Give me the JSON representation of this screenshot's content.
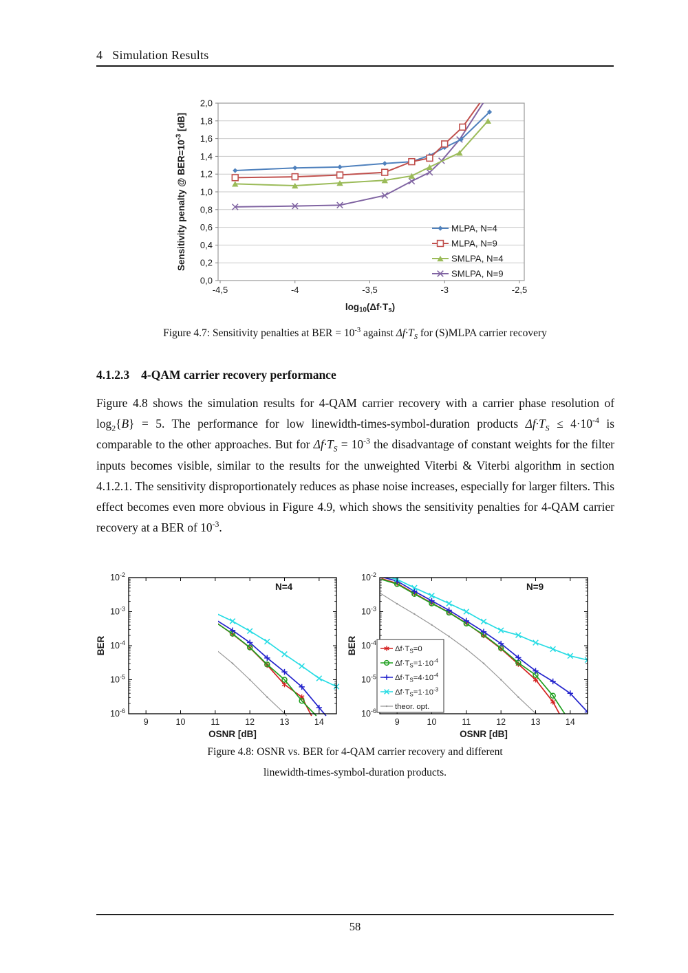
{
  "page": {
    "header": "4   Simulation Results",
    "number": "58"
  },
  "section": {
    "heading_number": "4.1.2.3",
    "heading_title": "4-QAM carrier recovery performance",
    "body_html": "Figure 4.8 shows the simulation results for 4-QAM carrier recovery with a carrier phase resolution of log<sub>2</sub>{<i>B</i>} = 5. The performance for low linewidth-times-symbol-duration products <i>&#916;f&#183;T<sub>S</sub></i> &#8804; 4&#183;10<sup>-4</sup> is comparable to the other approaches. But for <i>&#916;f&#183;T<sub>S</sub></i> = 10<sup>-3</sup> the disadvantage of constant weights for the filter inputs becomes visible, similar to the results for the unweighted Viterbi &amp; Viterbi algorithm in section 4.1.2.1. The sensitivity disproportionately reduces as phase noise increases, especially for larger filters. This effect becomes even more obvious in Figure 4.9, which shows the sensitivity penalties for 4-QAM carrier recovery at a BER of 10<sup>-3</sup>."
  },
  "figure47": {
    "caption_html": "Figure 4.7: Sensitivity penalties at BER = 10<sup>-3</sup> against <i>&#916;f&#183;T<sub>S</sub></i> for (S)MLPA carrier recovery"
  },
  "figure48": {
    "caption_line1": "Figure 4.8: OSNR vs. BER for 4-QAM carrier recovery and different",
    "caption_line2": "linewidth-times-symbol-duration products."
  },
  "chart_data": [
    {
      "id": "fig47",
      "type": "line",
      "xlabel": "log10(Δf·Ts)",
      "xlabel_rich": [
        [
          "t",
          "log"
        ],
        [
          "sub",
          "10"
        ],
        [
          "t",
          "(Δf·T"
        ],
        [
          "sub",
          "s"
        ],
        [
          "t",
          ")"
        ]
      ],
      "ylabel": "Sensitivity penalty @ BER=10-3 [dB]",
      "ylabel_rich": [
        [
          "t",
          "Sensitivity penalty @ BER=10"
        ],
        [
          "sup",
          "-3"
        ],
        [
          "t",
          " [dB]"
        ]
      ],
      "xlim": [
        -4.5,
        -2.5
      ],
      "ylim": [
        0,
        2
      ],
      "xtick_values": [
        -4.5,
        -4,
        -3.5,
        -3,
        -2.5
      ],
      "xtick_labels": [
        "-4,5",
        "-4",
        "-3,5",
        "-3",
        "-2,5"
      ],
      "ytick_labels": [
        "0,0",
        "0,2",
        "0,4",
        "0,6",
        "0,8",
        "1,0",
        "1,2",
        "1,4",
        "1,6",
        "1,8",
        "2,0"
      ],
      "grid": "horizontal",
      "legend_position": "inside lower right",
      "series": [
        {
          "name": "MLPA, N=4",
          "color": "#4F81BD",
          "marker": "diamond",
          "msize": 3.6,
          "points": [
            [
              -4.4,
              1.24
            ],
            [
              -4.0,
              1.27
            ],
            [
              -3.7,
              1.28
            ],
            [
              -3.4,
              1.32
            ],
            [
              -3.22,
              1.34
            ],
            [
              -3.1,
              1.41
            ],
            [
              -3.0,
              1.5
            ],
            [
              -2.89,
              1.59
            ],
            [
              -2.7,
              1.9
            ]
          ]
        },
        {
          "name": "MLPA, N=9",
          "color": "#C0504D",
          "marker": "square-open",
          "msize": 4.4,
          "points": [
            [
              -4.4,
              1.16
            ],
            [
              -4.0,
              1.17
            ],
            [
              -3.7,
              1.19
            ],
            [
              -3.4,
              1.22
            ],
            [
              -3.22,
              1.34
            ],
            [
              -3.1,
              1.38
            ],
            [
              -3.0,
              1.54
            ],
            [
              -2.88,
              1.73
            ],
            [
              -2.74,
              2.06
            ]
          ]
        },
        {
          "name": "SMLPA, N=4",
          "color": "#9BBB59",
          "marker": "triangle",
          "msize": 4.1,
          "points": [
            [
              -4.4,
              1.09
            ],
            [
              -4.0,
              1.07
            ],
            [
              -3.7,
              1.1
            ],
            [
              -3.4,
              1.13
            ],
            [
              -3.22,
              1.18
            ],
            [
              -3.1,
              1.28
            ],
            [
              -2.9,
              1.44
            ],
            [
              -2.71,
              1.8
            ]
          ]
        },
        {
          "name": "SMLPA, N=9",
          "color": "#8064A2",
          "marker": "x",
          "msize": 4.3,
          "points": [
            [
              -4.4,
              0.83
            ],
            [
              -4.0,
              0.84
            ],
            [
              -3.7,
              0.85
            ],
            [
              -3.4,
              0.96
            ],
            [
              -3.22,
              1.12
            ],
            [
              -3.1,
              1.22
            ],
            [
              -3.02,
              1.35
            ],
            [
              -2.9,
              1.59
            ],
            [
              -2.72,
              2.06
            ]
          ]
        }
      ]
    },
    {
      "id": "fig48-left",
      "type": "line",
      "label": "N=4",
      "xlabel": "OSNR [dB]",
      "ylabel": "BER",
      "xlim": [
        8.5,
        14.5
      ],
      "xticks": [
        9,
        10,
        11,
        12,
        13,
        14
      ],
      "ytick_exponents": [
        -2,
        -3,
        -4,
        -5,
        -6
      ],
      "yscale": "log",
      "legend_box": false,
      "series": [
        {
          "name": "theor. opt.",
          "name_rich": [
            [
              "t",
              "theor. opt."
            ]
          ],
          "color": "#979797",
          "marker": "dot",
          "msize": 1.2,
          "width": 1.2,
          "points": [
            [
              8.5,
              -2.45
            ],
            [
              9,
              -2.77
            ],
            [
              9.5,
              -3.07
            ],
            [
              10,
              -3.39
            ],
            [
              10.5,
              -3.73
            ],
            [
              11,
              -4.1
            ],
            [
              11.5,
              -4.52
            ],
            [
              12,
              -5.0
            ],
            [
              12.5,
              -5.51
            ],
            [
              13,
              -5.99
            ],
            [
              13.06,
              -6.06
            ]
          ]
        },
        {
          "name": "Δf·TS=0",
          "name_rich": [
            [
              "t",
              "Δf·T"
            ],
            [
              "sub",
              "S"
            ],
            [
              "t",
              "=0"
            ]
          ],
          "color": "#D42020",
          "marker": "asterisk",
          "msize": 3.6,
          "points": [
            [
              8.55,
              -2.02
            ],
            [
              9,
              -2.16
            ],
            [
              9.5,
              -2.44
            ],
            [
              10,
              -2.72
            ],
            [
              10.5,
              -2.99
            ],
            [
              11,
              -3.3
            ],
            [
              11.5,
              -3.66
            ],
            [
              12,
              -4.06
            ],
            [
              12.5,
              -4.57
            ],
            [
              13,
              -5.14
            ],
            [
              13.5,
              -5.51
            ],
            [
              13.78,
              -6.06
            ]
          ]
        },
        {
          "name": "Δf·TS=1·10-4",
          "name_rich": [
            [
              "t",
              "Δf·T"
            ],
            [
              "sub",
              "S"
            ],
            [
              "t",
              "=1·10"
            ],
            [
              "sup",
              "-4"
            ]
          ],
          "color": "#1FA01F",
          "marker": "circle-open",
          "msize": 3.5,
          "points": [
            [
              8.55,
              -2.04
            ],
            [
              9,
              -2.18
            ],
            [
              9.5,
              -2.46
            ],
            [
              10,
              -2.73
            ],
            [
              10.5,
              -3.0
            ],
            [
              11,
              -3.31
            ],
            [
              11.5,
              -3.65
            ],
            [
              12,
              -4.05
            ],
            [
              12.5,
              -4.55
            ],
            [
              13,
              -5.0
            ],
            [
              13.5,
              -5.62
            ],
            [
              13.92,
              -6.06
            ]
          ]
        },
        {
          "name": "Δf·TS=4·10-4",
          "name_rich": [
            [
              "t",
              "Δf·T"
            ],
            [
              "sub",
              "S"
            ],
            [
              "t",
              "=4·10"
            ],
            [
              "sup",
              "-4"
            ]
          ],
          "color": "#2222CC",
          "marker": "plus",
          "msize": 3.8,
          "points": [
            [
              8.55,
              -1.98
            ],
            [
              9,
              -2.1
            ],
            [
              9.5,
              -2.37
            ],
            [
              10,
              -2.64
            ],
            [
              10.5,
              -2.91
            ],
            [
              11,
              -3.23
            ],
            [
              11.5,
              -3.55
            ],
            [
              12,
              -3.91
            ],
            [
              12.5,
              -4.36
            ],
            [
              13,
              -4.77
            ],
            [
              13.5,
              -5.21
            ],
            [
              14,
              -5.82
            ],
            [
              14.2,
              -6.06
            ]
          ]
        },
        {
          "name": "Δf·TS=1·10-3",
          "name_rich": [
            [
              "t",
              "Δf·T"
            ],
            [
              "sub",
              "S"
            ],
            [
              "t",
              "=1·10"
            ],
            [
              "sup",
              "-3"
            ]
          ],
          "color": "#27DCE4",
          "marker": "x",
          "msize": 3.8,
          "points": [
            [
              8.7,
              -1.98
            ],
            [
              9,
              -2.03
            ],
            [
              9.5,
              -2.3
            ],
            [
              10,
              -2.56
            ],
            [
              10.5,
              -2.79
            ],
            [
              11,
              -3.04
            ],
            [
              11.5,
              -3.28
            ],
            [
              12,
              -3.57
            ],
            [
              12.5,
              -3.88
            ],
            [
              13,
              -4.25
            ],
            [
              13.5,
              -4.6
            ],
            [
              14,
              -4.96
            ],
            [
              14.5,
              -5.2
            ]
          ]
        }
      ]
    },
    {
      "id": "fig48-right",
      "type": "line",
      "label": "N=9",
      "xlabel": "OSNR [dB]",
      "ylabel": "BER",
      "xlim": [
        8.5,
        14.5
      ],
      "xticks": [
        9,
        10,
        11,
        12,
        13,
        14
      ],
      "ytick_exponents": [
        -2,
        -3,
        -4,
        -5,
        -6
      ],
      "yscale": "log",
      "legend_box": true,
      "legend_order": [
        "Δf·TS=0",
        "Δf·TS=1·10-4",
        "Δf·TS=4·10-4",
        "Δf·TS=1·10-3",
        "theor. opt."
      ],
      "series": [
        {
          "name": "theor. opt.",
          "name_rich": [
            [
              "t",
              "theor. opt."
            ]
          ],
          "color": "#979797",
          "marker": "dot",
          "msize": 1.2,
          "width": 1.2,
          "points": [
            [
              8.5,
              -2.45
            ],
            [
              9,
              -2.77
            ],
            [
              9.5,
              -3.07
            ],
            [
              10,
              -3.39
            ],
            [
              10.5,
              -3.73
            ],
            [
              11,
              -4.1
            ],
            [
              11.5,
              -4.52
            ],
            [
              12,
              -5.0
            ],
            [
              12.5,
              -5.51
            ],
            [
              13,
              -5.99
            ],
            [
              13.06,
              -6.06
            ]
          ]
        },
        {
          "name": "Δf·TS=0",
          "name_rich": [
            [
              "t",
              "Δf·T"
            ],
            [
              "sub",
              "S"
            ],
            [
              "t",
              "=0"
            ]
          ],
          "color": "#D42020",
          "marker": "asterisk",
          "msize": 3.6,
          "points": [
            [
              8.55,
              -2.03
            ],
            [
              9,
              -2.17
            ],
            [
              9.5,
              -2.46
            ],
            [
              10,
              -2.75
            ],
            [
              10.5,
              -3.02
            ],
            [
              11,
              -3.34
            ],
            [
              11.5,
              -3.7
            ],
            [
              12,
              -4.09
            ],
            [
              12.5,
              -4.54
            ],
            [
              13,
              -5.0
            ],
            [
              13.5,
              -5.65
            ],
            [
              13.72,
              -6.06
            ]
          ]
        },
        {
          "name": "Δf·TS=1·10-4",
          "name_rich": [
            [
              "t",
              "Δf·T"
            ],
            [
              "sub",
              "S"
            ],
            [
              "t",
              "=1·10"
            ],
            [
              "sup",
              "-4"
            ]
          ],
          "color": "#1FA01F",
          "marker": "circle-open",
          "msize": 3.5,
          "points": [
            [
              8.55,
              -2.05
            ],
            [
              9,
              -2.19
            ],
            [
              9.5,
              -2.48
            ],
            [
              10,
              -2.76
            ],
            [
              10.5,
              -3.03
            ],
            [
              11,
              -3.35
            ],
            [
              11.5,
              -3.68
            ],
            [
              12,
              -4.07
            ],
            [
              12.5,
              -4.5
            ],
            [
              13,
              -4.86
            ],
            [
              13.5,
              -5.47
            ],
            [
              13.88,
              -6.06
            ]
          ]
        },
        {
          "name": "Δf·TS=4·10-4",
          "name_rich": [
            [
              "t",
              "Δf·T"
            ],
            [
              "sub",
              "S"
            ],
            [
              "t",
              "=4·10"
            ],
            [
              "sup",
              "-4"
            ]
          ],
          "color": "#2222CC",
          "marker": "plus",
          "msize": 3.8,
          "points": [
            [
              8.55,
              -1.98
            ],
            [
              9,
              -2.1
            ],
            [
              9.5,
              -2.4
            ],
            [
              10,
              -2.68
            ],
            [
              10.5,
              -2.96
            ],
            [
              11,
              -3.27
            ],
            [
              11.5,
              -3.59
            ],
            [
              12,
              -3.94
            ],
            [
              12.5,
              -4.35
            ],
            [
              13,
              -4.74
            ],
            [
              13.5,
              -5.05
            ],
            [
              14,
              -5.4
            ],
            [
              14.5,
              -5.95
            ]
          ]
        },
        {
          "name": "Δf·TS=1·10-3",
          "name_rich": [
            [
              "t",
              "Δf·T"
            ],
            [
              "sub",
              "S"
            ],
            [
              "t",
              "=1·10"
            ],
            [
              "sup",
              "-3"
            ]
          ],
          "color": "#27DCE4",
          "marker": "x",
          "msize": 3.8,
          "points": [
            [
              8.7,
              -1.98
            ],
            [
              9,
              -2.05
            ],
            [
              9.5,
              -2.3
            ],
            [
              10,
              -2.53
            ],
            [
              10.5,
              -2.76
            ],
            [
              11,
              -3.0
            ],
            [
              11.5,
              -3.29
            ],
            [
              12,
              -3.55
            ],
            [
              12.5,
              -3.69
            ],
            [
              13,
              -3.91
            ],
            [
              13.5,
              -4.1
            ],
            [
              14,
              -4.3
            ],
            [
              14.5,
              -4.42
            ]
          ]
        }
      ]
    }
  ]
}
